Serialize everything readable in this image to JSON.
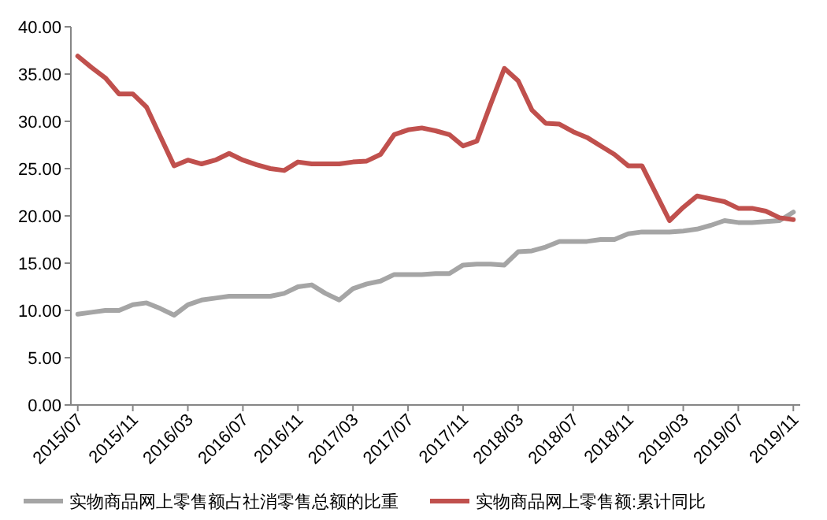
{
  "chart_data": {
    "type": "line",
    "categories": [
      "2015/07",
      null,
      null,
      null,
      "2015/11",
      null,
      null,
      null,
      "2016/03",
      null,
      null,
      null,
      "2016/07",
      null,
      null,
      null,
      "2016/11",
      null,
      null,
      null,
      "2017/03",
      null,
      null,
      null,
      "2017/07",
      null,
      null,
      null,
      "2017/11",
      null,
      null,
      null,
      "2018/03",
      null,
      null,
      null,
      "2018/07",
      null,
      null,
      null,
      "2018/11",
      null,
      null,
      null,
      "2019/03",
      null,
      null,
      null,
      "2019/07",
      null,
      null,
      null,
      "2019/11"
    ],
    "series": [
      {
        "name": "实物商品网上零售额占社消零售总额的比重",
        "color": "#a5a5a5",
        "values": [
          9.6,
          9.8,
          10.0,
          10.0,
          10.6,
          10.8,
          10.2,
          9.5,
          10.6,
          11.1,
          11.3,
          11.5,
          11.5,
          11.5,
          11.5,
          11.8,
          12.5,
          12.7,
          11.8,
          11.1,
          12.3,
          12.8,
          13.1,
          13.8,
          13.8,
          13.8,
          13.9,
          13.9,
          14.8,
          14.9,
          14.9,
          14.8,
          16.2,
          16.3,
          16.7,
          17.3,
          17.3,
          17.3,
          17.5,
          17.5,
          18.1,
          18.3,
          18.3,
          18.3,
          18.4,
          18.6,
          19.0,
          19.5,
          19.3,
          19.3,
          19.4,
          19.5,
          20.4
        ]
      },
      {
        "name": "实物商品网上零售额:累计同比",
        "color": "#c0504d",
        "values": [
          36.9,
          35.7,
          34.6,
          32.9,
          32.9,
          31.5,
          28.4,
          25.3,
          25.9,
          25.5,
          25.9,
          26.6,
          25.9,
          25.4,
          25.0,
          24.8,
          25.7,
          25.5,
          25.5,
          25.5,
          25.7,
          25.8,
          26.5,
          28.6,
          29.1,
          29.3,
          29.0,
          28.6,
          27.4,
          27.9,
          31.8,
          35.6,
          34.3,
          31.2,
          29.8,
          29.7,
          28.9,
          28.3,
          27.4,
          26.5,
          25.3,
          25.3,
          22.4,
          19.5,
          20.9,
          22.1,
          21.8,
          21.5,
          20.8,
          20.8,
          20.5,
          19.8,
          19.6
        ]
      }
    ],
    "ylim": [
      0,
      40
    ],
    "yticks": [
      {
        "value": 0,
        "label": "0.00"
      },
      {
        "value": 5,
        "label": "5.00"
      },
      {
        "value": 10,
        "label": "10.00"
      },
      {
        "value": 15,
        "label": "15.00"
      },
      {
        "value": 20,
        "label": "20.00"
      },
      {
        "value": 25,
        "label": "25.00"
      },
      {
        "value": 30,
        "label": "30.00"
      },
      {
        "value": 35,
        "label": "35.00"
      },
      {
        "value": 40,
        "label": "40.00"
      }
    ],
    "grid": false,
    "legend": "bottom",
    "marker": "none",
    "line_style": "solid"
  }
}
